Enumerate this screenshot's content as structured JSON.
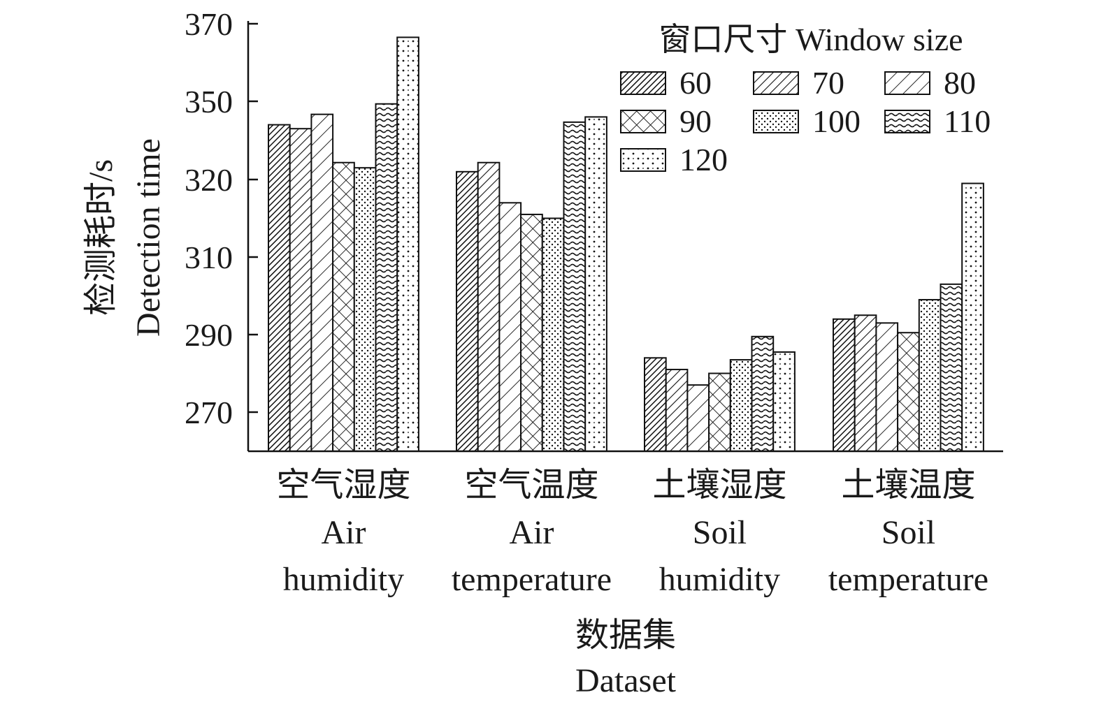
{
  "chart_data": {
    "type": "bar",
    "ylabel": [
      "检测耗时/s",
      "Detection time"
    ],
    "xlabel": [
      "数据集",
      "Dataset"
    ],
    "ylim": [
      260,
      370
    ],
    "yticks": [
      270,
      290,
      310,
      320,
      350,
      370
    ],
    "y_scale": "categorical-uneven",
    "grid": false,
    "legend_title": "窗口尺寸 Window size",
    "legend_position": "top-right",
    "categories": [
      [
        "空气湿度",
        "Air",
        "humidity"
      ],
      [
        "空气温度",
        "Air",
        "temperature"
      ],
      [
        "土壤湿度",
        "Soil",
        "humidity"
      ],
      [
        "土壤温度",
        "Soil",
        "temperature"
      ]
    ],
    "series": [
      {
        "name": "60",
        "pattern": "dense-diagonal",
        "values": [
          341,
          323,
          284,
          294
        ]
      },
      {
        "name": "70",
        "pattern": "diagonal",
        "values": [
          339.5,
          326.5,
          281,
          295
        ]
      },
      {
        "name": "80",
        "pattern": "sparse-diagonal",
        "values": [
          345,
          317,
          277,
          293
        ]
      },
      {
        "name": "90",
        "pattern": "crosshatch",
        "values": [
          326.5,
          315.5,
          280,
          290.5
        ]
      },
      {
        "name": "100",
        "pattern": "dots",
        "values": [
          324.5,
          315,
          283.5,
          299
        ]
      },
      {
        "name": "110",
        "pattern": "waves",
        "values": [
          349,
          342,
          289.5,
          303
        ]
      },
      {
        "name": "120",
        "pattern": "sparse-dots",
        "values": [
          366.5,
          344,
          285.5,
          319.5
        ]
      }
    ]
  }
}
